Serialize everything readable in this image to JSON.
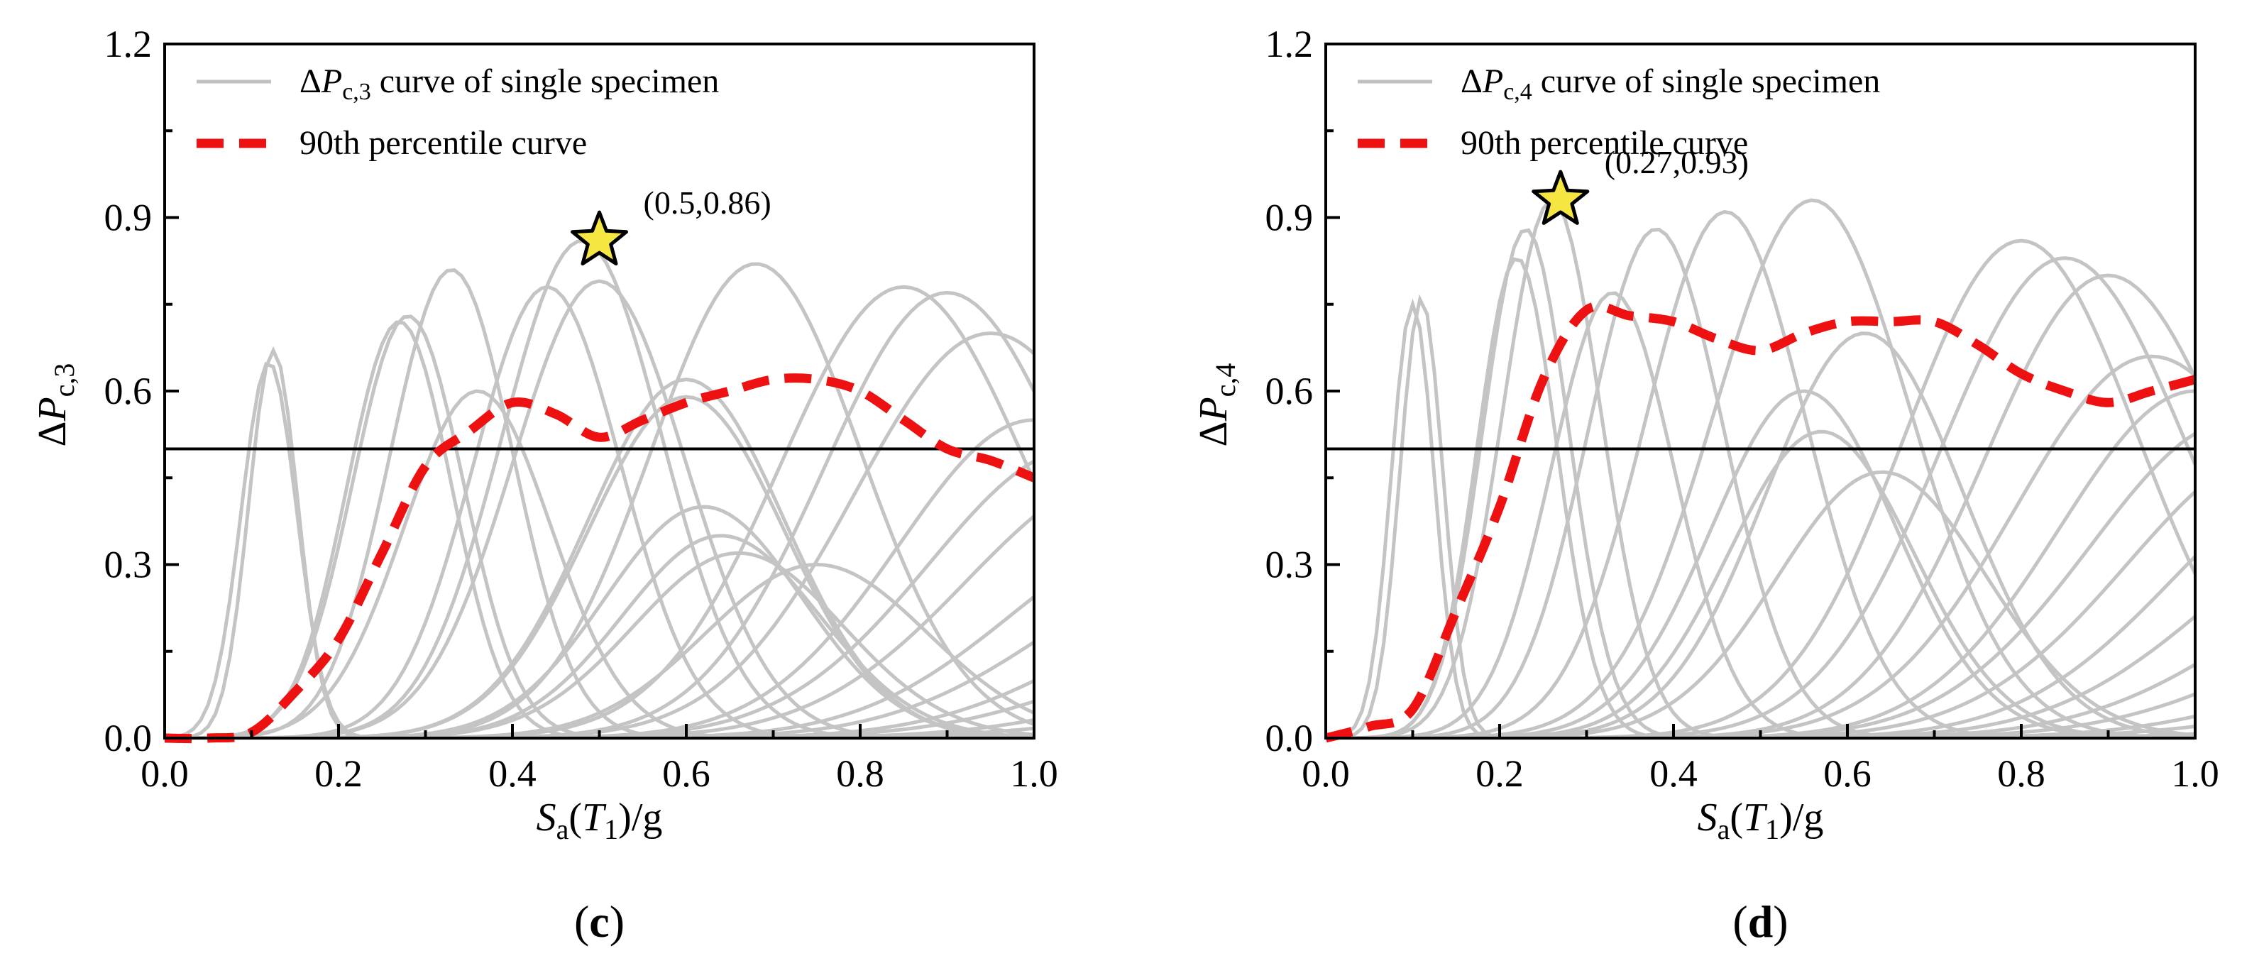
{
  "chart_data": [
    {
      "type": "line",
      "panel_label": "c",
      "ylabel_symbol": "P",
      "ylabel_sub": "c,3",
      "xlabel_symbol": "S",
      "xlabel_sub": "a",
      "xlabel_arg_symbol": "T",
      "xlabel_arg_sub": "1",
      "xlabel_unit": "/g",
      "xlim": [
        0.0,
        1.0
      ],
      "ylim": [
        0.0,
        1.2
      ],
      "xticks": [
        "0.0",
        "0.2",
        "0.4",
        "0.6",
        "0.8",
        "1.0"
      ],
      "yticks": [
        "0.0",
        "0.3",
        "0.6",
        "0.9",
        "1.2"
      ],
      "legend_position": "top-left",
      "legend": [
        {
          "prefix": "Δ",
          "symbol": "P",
          "sub": "c,3",
          "text": " curve of single specimen",
          "style": "gray-solid"
        },
        {
          "text": "90th percentile curve",
          "style": "red-dashed"
        }
      ],
      "threshold": 0.5,
      "star": {
        "x": 0.5,
        "y": 0.86,
        "label": "(0.5,0.86)"
      },
      "percentile_curve": {
        "x": [
          0.0,
          0.05,
          0.1,
          0.15,
          0.2,
          0.25,
          0.3,
          0.35,
          0.4,
          0.45,
          0.5,
          0.55,
          0.6,
          0.65,
          0.7,
          0.75,
          0.8,
          0.85,
          0.9,
          0.95,
          1.0
        ],
        "y": [
          0.0,
          0.0,
          0.01,
          0.08,
          0.17,
          0.32,
          0.47,
          0.53,
          0.58,
          0.56,
          0.52,
          0.55,
          0.58,
          0.6,
          0.62,
          0.62,
          0.6,
          0.55,
          0.5,
          0.48,
          0.45
        ]
      },
      "specimens": [
        {
          "peak": 0.12,
          "width": 0.045,
          "amp": 0.65
        },
        {
          "peak": 0.125,
          "width": 0.04,
          "amp": 0.67
        },
        {
          "peak": 0.27,
          "width": 0.085,
          "amp": 0.72
        },
        {
          "peak": 0.28,
          "width": 0.09,
          "amp": 0.73
        },
        {
          "peak": 0.33,
          "width": 0.1,
          "amp": 0.81
        },
        {
          "peak": 0.36,
          "width": 0.12,
          "amp": 0.6
        },
        {
          "peak": 0.44,
          "width": 0.12,
          "amp": 0.78
        },
        {
          "peak": 0.48,
          "width": 0.13,
          "amp": 0.86
        },
        {
          "peak": 0.5,
          "width": 0.14,
          "amp": 0.79
        },
        {
          "peak": 0.6,
          "width": 0.16,
          "amp": 0.62
        },
        {
          "peak": 0.68,
          "width": 0.17,
          "amp": 0.82
        },
        {
          "peak": 0.6,
          "width": 0.16,
          "amp": 0.59
        },
        {
          "peak": 0.62,
          "width": 0.16,
          "amp": 0.4
        },
        {
          "peak": 0.64,
          "width": 0.16,
          "amp": 0.35
        },
        {
          "peak": 0.66,
          "width": 0.17,
          "amp": 0.32
        },
        {
          "peak": 0.75,
          "width": 0.18,
          "amp": 0.3
        },
        {
          "peak": 0.85,
          "width": 0.2,
          "amp": 0.78
        },
        {
          "peak": 0.9,
          "width": 0.2,
          "amp": 0.77
        },
        {
          "peak": 0.95,
          "width": 0.22,
          "amp": 0.7
        },
        {
          "peak": 1.0,
          "width": 0.22,
          "amp": 0.55
        },
        {
          "peak": 1.05,
          "width": 0.24,
          "amp": 0.5
        },
        {
          "peak": 1.1,
          "width": 0.25,
          "amp": 0.45
        },
        {
          "peak": 1.15,
          "width": 0.25,
          "amp": 0.35
        },
        {
          "peak": 1.2,
          "width": 0.26,
          "amp": 0.3
        },
        {
          "peak": 1.25,
          "width": 0.26,
          "amp": 0.25
        },
        {
          "peak": 1.3,
          "width": 0.28,
          "amp": 0.2
        },
        {
          "peak": 1.35,
          "width": 0.28,
          "amp": 0.15
        },
        {
          "peak": 1.4,
          "width": 0.3,
          "amp": 0.1
        },
        {
          "peak": 1.45,
          "width": 0.3,
          "amp": 0.06
        }
      ]
    },
    {
      "type": "line",
      "panel_label": "d",
      "ylabel_symbol": "P",
      "ylabel_sub": "c,4",
      "xlabel_symbol": "S",
      "xlabel_sub": "a",
      "xlabel_arg_symbol": "T",
      "xlabel_arg_sub": "1",
      "xlabel_unit": "/g",
      "xlim": [
        0.0,
        1.0
      ],
      "ylim": [
        0.0,
        1.2
      ],
      "xticks": [
        "0.0",
        "0.2",
        "0.4",
        "0.6",
        "0.8",
        "1.0"
      ],
      "yticks": [
        "0.0",
        "0.3",
        "0.6",
        "0.9",
        "1.2"
      ],
      "legend_position": "top-left",
      "legend": [
        {
          "prefix": "Δ",
          "symbol": "P",
          "sub": "c,4",
          "text": " curve of single specimen",
          "style": "gray-solid"
        },
        {
          "text": "90th percentile curve",
          "style": "red-dashed"
        }
      ],
      "threshold": 0.5,
      "star": {
        "x": 0.27,
        "y": 0.93,
        "label": "(0.27,0.93)"
      },
      "percentile_curve": {
        "x": [
          0.0,
          0.05,
          0.1,
          0.15,
          0.2,
          0.25,
          0.3,
          0.35,
          0.4,
          0.45,
          0.5,
          0.55,
          0.6,
          0.65,
          0.7,
          0.75,
          0.8,
          0.85,
          0.9,
          0.95,
          1.0
        ],
        "y": [
          0.0,
          0.02,
          0.05,
          0.22,
          0.4,
          0.62,
          0.74,
          0.73,
          0.72,
          0.69,
          0.67,
          0.7,
          0.72,
          0.72,
          0.72,
          0.68,
          0.63,
          0.6,
          0.58,
          0.6,
          0.62
        ]
      },
      "specimens": [
        {
          "peak": 0.1,
          "width": 0.035,
          "amp": 0.75
        },
        {
          "peak": 0.11,
          "width": 0.035,
          "amp": 0.76
        },
        {
          "peak": 0.22,
          "width": 0.065,
          "amp": 0.83
        },
        {
          "peak": 0.23,
          "width": 0.07,
          "amp": 0.88
        },
        {
          "peak": 0.26,
          "width": 0.08,
          "amp": 0.93
        },
        {
          "peak": 0.33,
          "width": 0.1,
          "amp": 0.77
        },
        {
          "peak": 0.38,
          "width": 0.11,
          "amp": 0.88
        },
        {
          "peak": 0.46,
          "width": 0.13,
          "amp": 0.91
        },
        {
          "peak": 0.56,
          "width": 0.16,
          "amp": 0.93
        },
        {
          "peak": 0.55,
          "width": 0.15,
          "amp": 0.6
        },
        {
          "peak": 0.57,
          "width": 0.15,
          "amp": 0.53
        },
        {
          "peak": 0.62,
          "width": 0.16,
          "amp": 0.7
        },
        {
          "peak": 0.64,
          "width": 0.17,
          "amp": 0.46
        },
        {
          "peak": 0.8,
          "width": 0.19,
          "amp": 0.86
        },
        {
          "peak": 0.85,
          "width": 0.2,
          "amp": 0.83
        },
        {
          "peak": 0.9,
          "width": 0.2,
          "amp": 0.8
        },
        {
          "peak": 0.95,
          "width": 0.22,
          "amp": 0.66
        },
        {
          "peak": 1.0,
          "width": 0.22,
          "amp": 0.6
        },
        {
          "peak": 1.05,
          "width": 0.24,
          "amp": 0.55
        },
        {
          "peak": 1.1,
          "width": 0.25,
          "amp": 0.5
        },
        {
          "peak": 1.15,
          "width": 0.25,
          "amp": 0.45
        },
        {
          "peak": 1.2,
          "width": 0.26,
          "amp": 0.38
        },
        {
          "peak": 1.25,
          "width": 0.27,
          "amp": 0.3
        },
        {
          "peak": 1.3,
          "width": 0.28,
          "amp": 0.24
        },
        {
          "peak": 1.35,
          "width": 0.28,
          "amp": 0.18
        },
        {
          "peak": 1.4,
          "width": 0.3,
          "amp": 0.12
        },
        {
          "peak": 1.45,
          "width": 0.3,
          "amp": 0.07
        }
      ]
    }
  ]
}
